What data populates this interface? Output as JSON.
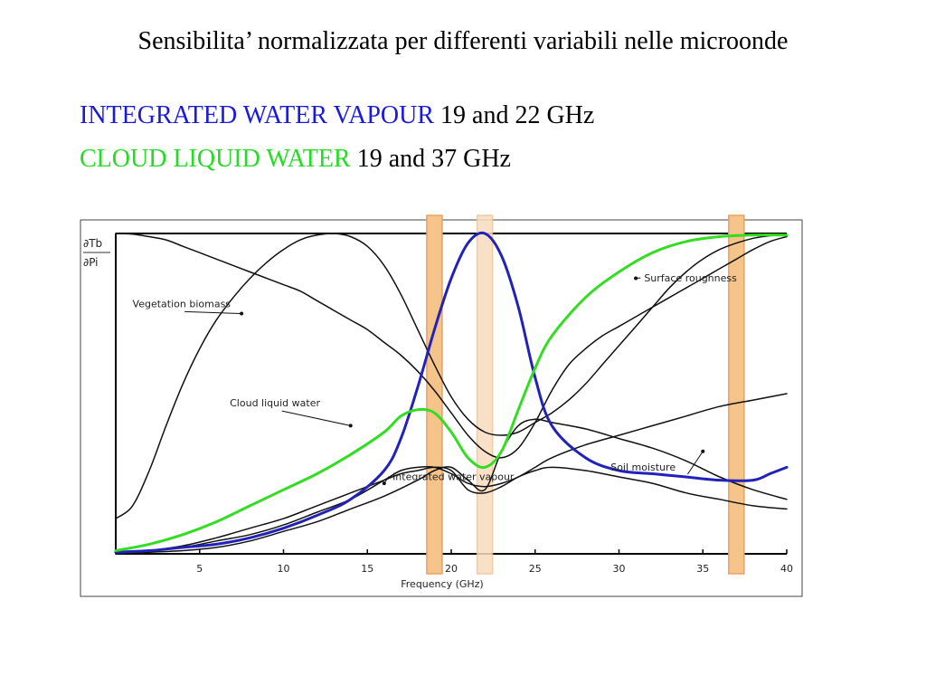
{
  "slide": {
    "title": "Sensibilita’ normalizzata per differenti variabili nelle microonde",
    "lines": [
      {
        "label": "INTEGRATED WATER VAPOUR",
        "label_color": "#1a1adc",
        "text": " 19 and 22 GHz"
      },
      {
        "label": "CLOUD LIQUID WATER",
        "label_color": "#22dd22",
        "text": " 19 and 37 GHz"
      }
    ]
  },
  "chart_data": {
    "type": "line",
    "xlabel": "Frequency (GHz)",
    "ylabel_top": "∂Tb",
    "ylabel_bottom": "∂Pi",
    "xlim": [
      0,
      40
    ],
    "ylim": [
      0,
      1
    ],
    "xticks": [
      5,
      10,
      15,
      20,
      25,
      30,
      35,
      40
    ],
    "series": [
      {
        "name": "Vegetation biomass",
        "color": "#111111",
        "width": 1.5,
        "x": [
          0,
          1,
          2,
          3,
          4,
          5,
          6,
          7,
          8,
          9,
          10,
          11,
          12,
          13,
          14,
          15,
          16,
          17,
          18,
          19,
          20,
          21,
          22,
          23,
          24,
          25,
          26,
          27,
          28,
          29,
          30,
          31,
          32,
          33,
          34,
          35,
          36,
          37,
          38,
          39,
          40
        ],
        "y": [
          0.11,
          0.15,
          0.26,
          0.4,
          0.53,
          0.64,
          0.73,
          0.8,
          0.86,
          0.91,
          0.95,
          0.98,
          0.995,
          1.0,
          0.99,
          0.96,
          0.9,
          0.81,
          0.7,
          0.59,
          0.49,
          0.42,
          0.38,
          0.37,
          0.38,
          0.41,
          0.44,
          0.48,
          0.53,
          0.59,
          0.65,
          0.71,
          0.77,
          0.83,
          0.88,
          0.92,
          0.95,
          0.97,
          0.985,
          0.993,
          0.995
        ]
      },
      {
        "name": "Surface roughness",
        "color": "#111111",
        "width": 1.5,
        "x": [
          0,
          1,
          2,
          3,
          4,
          5,
          6,
          7,
          8,
          9,
          10,
          11,
          12,
          13,
          14,
          15,
          16,
          17,
          18,
          19,
          20,
          21,
          22,
          23,
          24,
          25,
          26,
          27,
          28,
          29,
          30,
          31,
          32,
          33,
          34,
          35,
          36,
          37,
          38,
          39,
          40
        ],
        "y": [
          1.0,
          0.998,
          0.99,
          0.98,
          0.96,
          0.94,
          0.92,
          0.9,
          0.88,
          0.86,
          0.84,
          0.82,
          0.79,
          0.76,
          0.73,
          0.7,
          0.66,
          0.62,
          0.57,
          0.51,
          0.44,
          0.37,
          0.32,
          0.3,
          0.33,
          0.41,
          0.51,
          0.59,
          0.64,
          0.68,
          0.71,
          0.74,
          0.77,
          0.8,
          0.83,
          0.86,
          0.89,
          0.92,
          0.95,
          0.975,
          0.99
        ]
      },
      {
        "name": "Soil moisture",
        "color": "#111111",
        "width": 1.5,
        "x": [
          0,
          2,
          4,
          6,
          8,
          10,
          12,
          14,
          16,
          18,
          19,
          20,
          21,
          22,
          23,
          24,
          25,
          26,
          28,
          30,
          32,
          34,
          36,
          38,
          40
        ],
        "y": [
          0,
          0.005,
          0.01,
          0.02,
          0.04,
          0.07,
          0.1,
          0.14,
          0.18,
          0.23,
          0.26,
          0.27,
          0.23,
          0.2,
          0.32,
          0.4,
          0.42,
          0.41,
          0.39,
          0.36,
          0.33,
          0.29,
          0.24,
          0.2,
          0.17
        ]
      },
      {
        "name": "Cloud liquid water",
        "color": "#111111",
        "width": 1.5,
        "x": [
          0,
          2,
          4,
          6,
          8,
          10,
          12,
          14,
          16,
          17,
          18,
          19,
          20,
          21,
          22,
          23,
          24,
          25,
          26,
          28,
          30,
          32,
          34,
          36,
          38,
          40
        ],
        "y": [
          0,
          0.01,
          0.025,
          0.05,
          0.08,
          0.11,
          0.15,
          0.19,
          0.23,
          0.25,
          0.26,
          0.27,
          0.26,
          0.2,
          0.19,
          0.21,
          0.24,
          0.26,
          0.27,
          0.26,
          0.24,
          0.22,
          0.19,
          0.17,
          0.15,
          0.14
        ]
      },
      {
        "name": "Integrated water vapour",
        "color": "#111111",
        "width": 1.5,
        "x": [
          0,
          2,
          4,
          6,
          8,
          10,
          12,
          14,
          16,
          17,
          18,
          19,
          20,
          21,
          22,
          23,
          24,
          25,
          26,
          28,
          30,
          32,
          34,
          36,
          38,
          40
        ],
        "y": [
          0,
          0.01,
          0.02,
          0.04,
          0.06,
          0.09,
          0.13,
          0.17,
          0.23,
          0.26,
          0.27,
          0.27,
          0.25,
          0.22,
          0.21,
          0.22,
          0.24,
          0.27,
          0.3,
          0.34,
          0.37,
          0.4,
          0.43,
          0.46,
          0.48,
          0.5
        ]
      },
      {
        "name": "",
        "color": "#2222bb",
        "width": 3,
        "x": [
          0,
          2,
          4,
          6,
          8,
          10,
          12,
          14,
          16,
          17,
          18,
          19,
          20,
          21,
          22,
          23,
          24,
          25,
          26,
          28,
          30,
          32,
          34,
          36,
          38,
          39,
          40
        ],
        "y": [
          0.005,
          0.01,
          0.02,
          0.03,
          0.05,
          0.08,
          0.12,
          0.17,
          0.26,
          0.36,
          0.52,
          0.7,
          0.86,
          0.97,
          1.0,
          0.93,
          0.77,
          0.55,
          0.4,
          0.3,
          0.26,
          0.25,
          0.24,
          0.23,
          0.23,
          0.25,
          0.27
        ]
      },
      {
        "name": "",
        "color": "#33dd22",
        "width": 3,
        "x": [
          0,
          2,
          4,
          6,
          8,
          10,
          12,
          14,
          16,
          17,
          18,
          19,
          20,
          21,
          22,
          23,
          24,
          25,
          26,
          28,
          30,
          32,
          34,
          36,
          38,
          40
        ],
        "y": [
          0.01,
          0.03,
          0.06,
          0.1,
          0.15,
          0.2,
          0.25,
          0.31,
          0.38,
          0.43,
          0.45,
          0.44,
          0.38,
          0.3,
          0.27,
          0.32,
          0.45,
          0.58,
          0.68,
          0.8,
          0.88,
          0.94,
          0.975,
          0.99,
          0.995,
          0.995
        ]
      }
    ],
    "highlight_bands": [
      {
        "freq": 19,
        "fill": "#f5c48a",
        "stroke": "#e8a060",
        "opacity": 1.0
      },
      {
        "freq": 22,
        "fill": "#f9dcc0",
        "stroke": "#f3c18e",
        "opacity": 0.85
      },
      {
        "freq": 37,
        "fill": "#f5c48a",
        "stroke": "#e8a060",
        "opacity": 1.0
      }
    ],
    "annotations": [
      {
        "text": "Vegetation biomass",
        "x": 1.0,
        "y": 0.77,
        "ax": 7.5,
        "ay": 0.75
      },
      {
        "text": "Surface roughness",
        "x": 31.5,
        "y": 0.85,
        "ax": 31.0,
        "ay": 0.86
      },
      {
        "text": "Cloud liquid water",
        "x": 6.8,
        "y": 0.46,
        "ax": 14.0,
        "ay": 0.4
      },
      {
        "text": "Integrated water vapour",
        "x": 16.5,
        "y": 0.23,
        "ax": 16.0,
        "ay": 0.22
      },
      {
        "text": "Soil moisture",
        "x": 29.5,
        "y": 0.26,
        "ax": 35.0,
        "ay": 0.32
      }
    ]
  }
}
